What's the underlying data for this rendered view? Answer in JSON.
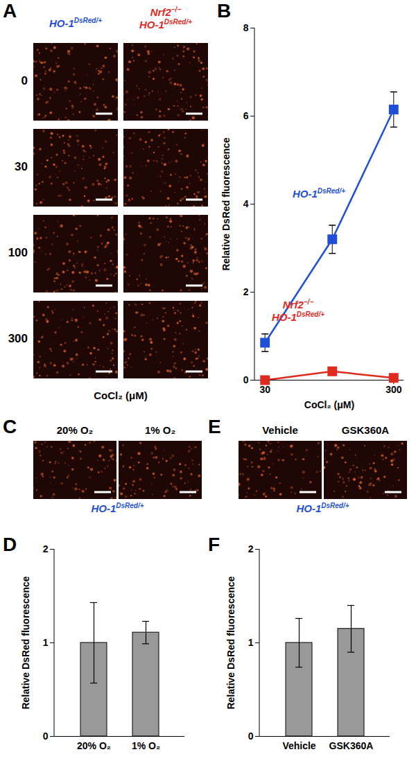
{
  "panels": {
    "A": {
      "letter": "A",
      "columns": [
        {
          "lines": [
            {
              "text": "HO-1",
              "sup": "DsRed/+"
            }
          ],
          "color": "#1f4fd6"
        },
        {
          "lines": [
            {
              "text": "Nrf2",
              "sup": "−/−"
            },
            {
              "text": "HO-1",
              "sup": "DsRed/+"
            }
          ],
          "color": "#e02a1e"
        }
      ],
      "rows": [
        0,
        30,
        100,
        300
      ],
      "xlabel": "CoCl₂ (μM)"
    },
    "C": {
      "letter": "C",
      "images": [
        "20% O₂",
        "1% O₂"
      ],
      "caption": {
        "lines": [
          {
            "text": "HO-1",
            "sup": "DsRed/+"
          }
        ],
        "color": "#1f4fd6"
      }
    },
    "E": {
      "letter": "E",
      "images": [
        "Vehicle",
        "GSK360A"
      ],
      "caption": {
        "lines": [
          {
            "text": "HO-1",
            "sup": "DsRed/+"
          }
        ],
        "color": "#1f4fd6"
      }
    }
  },
  "chart_data": [
    {
      "letter": "B",
      "type": "line",
      "log": "x",
      "marker": "square",
      "xlabel": "CoCl₂ (μM)",
      "ylabel": "Relative DsRed fluorescence",
      "x": [
        30,
        100,
        300
      ],
      "xlim": [
        25,
        360
      ],
      "xticks": [
        30,
        300
      ],
      "ylim": [
        0,
        8
      ],
      "yticks": [
        0,
        2,
        4,
        6,
        8
      ],
      "series": [
        {
          "name": [
            {
              "text": "HO-1",
              "sup": "DsRed/+"
            }
          ],
          "color": "#1f4fd6",
          "values": [
            0.85,
            3.2,
            6.15
          ],
          "error": [
            0.2,
            0.32,
            0.4
          ]
        },
        {
          "name": [
            {
              "text": "Nrf2",
              "sup": "−/−"
            },
            {
              "text": "HO-1",
              "sup": "DsRed/+"
            }
          ],
          "color": "#e02a1e",
          "values": [
            0,
            0.2,
            0.05
          ],
          "error": [
            0.02,
            0.05,
            0.03
          ]
        }
      ]
    },
    {
      "letter": "D",
      "type": "bar",
      "ylabel": "Relative DsRed fluorescence",
      "categories": [
        "20% O₂",
        "1% O₂"
      ],
      "values": [
        1,
        1.11
      ],
      "error": [
        0.43,
        0.12
      ],
      "ylim": [
        0,
        2
      ],
      "yticks": [
        0,
        1,
        2
      ],
      "color": "#999999"
    },
    {
      "letter": "F",
      "type": "bar",
      "ylabel": "Relative DsRed fluorescence",
      "categories": [
        "Vehicle",
        "GSK360A"
      ],
      "values": [
        1,
        1.15
      ],
      "error": [
        0.26,
        0.25
      ],
      "ylim": [
        0,
        2
      ],
      "yticks": [
        0,
        1,
        2
      ],
      "color": "#999999"
    }
  ]
}
